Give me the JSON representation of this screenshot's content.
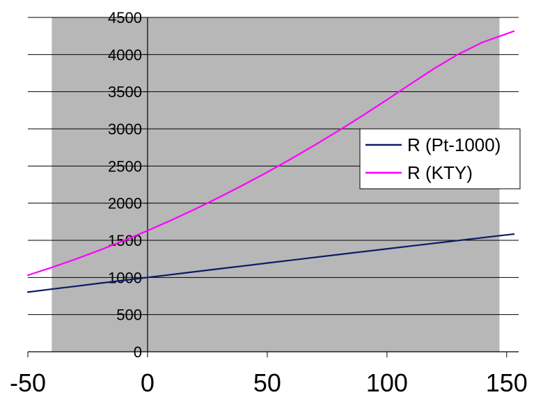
{
  "chart_data": {
    "type": "line",
    "xlim": [
      -50,
      155
    ],
    "ylim": [
      0,
      4500
    ],
    "x_ticks": [
      "-50",
      "0",
      "50",
      "100",
      "150"
    ],
    "y_ticks": [
      "0",
      "500",
      "1000",
      "1500",
      "2000",
      "2500",
      "3000",
      "3500",
      "4000",
      "4500"
    ],
    "grid": true,
    "shaded_region": [
      -40,
      147
    ],
    "legend_position": "right",
    "series": [
      {
        "name": "R (Pt-1000)",
        "color": "#0c1a66",
        "x": [
          -50,
          -40,
          -30,
          -20,
          -10,
          0,
          10,
          20,
          30,
          40,
          50,
          60,
          70,
          80,
          90,
          100,
          110,
          120,
          130,
          140,
          150,
          153
        ],
        "y": [
          803,
          843,
          882,
          922,
          961,
          1000,
          1039,
          1078,
          1117,
          1155,
          1194,
          1232,
          1271,
          1309,
          1347,
          1385,
          1423,
          1461,
          1498,
          1536,
          1573,
          1584
        ]
      },
      {
        "name": "R (KTY)",
        "color": "#ff00ff",
        "x": [
          -50,
          -40,
          -30,
          -20,
          -10,
          0,
          10,
          20,
          30,
          40,
          50,
          60,
          70,
          80,
          90,
          100,
          110,
          120,
          130,
          140,
          150,
          153
        ],
        "y": [
          1030,
          1135,
          1247,
          1367,
          1495,
          1630,
          1772,
          1922,
          2080,
          2245,
          2417,
          2597,
          2785,
          2980,
          3182,
          3392,
          3607,
          3817,
          4008,
          4166,
          4280,
          4315
        ]
      }
    ]
  }
}
